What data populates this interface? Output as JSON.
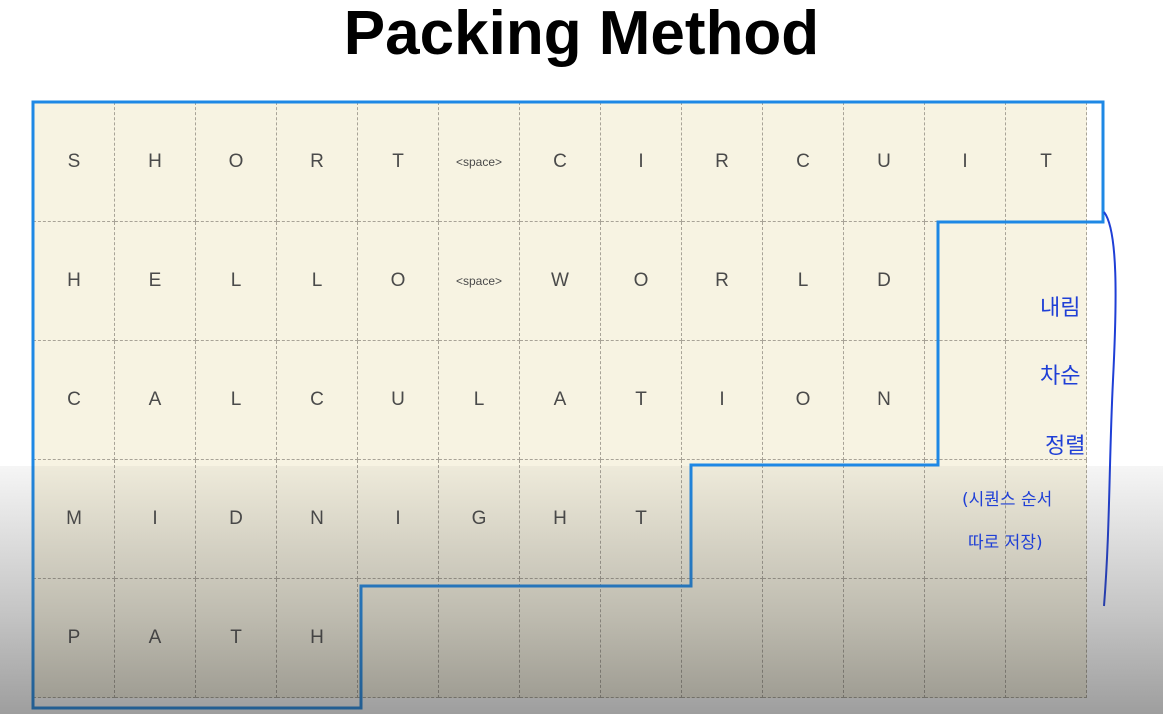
{
  "title": "Packing Method",
  "rows": [
    [
      "S",
      "H",
      "O",
      "R",
      "T",
      "<space>",
      "C",
      "I",
      "R",
      "C",
      "U",
      "I",
      "T"
    ],
    [
      "H",
      "E",
      "L",
      "L",
      "O",
      "<space>",
      "W",
      "O",
      "R",
      "L",
      "D",
      "",
      ""
    ],
    [
      "C",
      "A",
      "L",
      "C",
      "U",
      "L",
      "A",
      "T",
      "I",
      "O",
      "N",
      "",
      ""
    ],
    [
      "M",
      "I",
      "D",
      "N",
      "I",
      "G",
      "H",
      "T",
      "",
      "",
      "",
      "",
      ""
    ],
    [
      "P",
      "A",
      "T",
      "H",
      "",
      "",
      "",
      "",
      "",
      "",
      "",
      "",
      ""
    ]
  ],
  "annotation": {
    "line1": "내림",
    "line2": "차순",
    "line3": "정렬",
    "line4": "(시퀀스 순서",
    "line5": "따로 저장)"
  },
  "colors": {
    "cell_background": "#f7f3e2",
    "outline": "#1e88e5",
    "handwriting": "#1f3fd6"
  }
}
